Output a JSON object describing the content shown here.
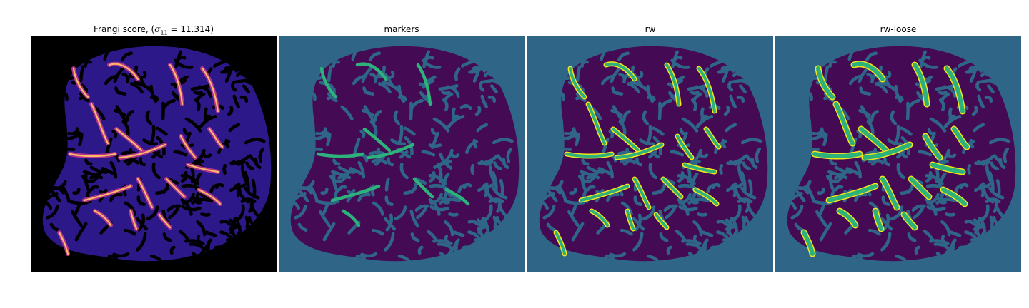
{
  "figure": {
    "panels": [
      {
        "title": "",
        "title_prefix": "Frangi score, (",
        "title_symbol": "σ",
        "title_sub": "11",
        "title_suffix": " = 11.314)",
        "colormap": "magma"
      },
      {
        "title": "markers",
        "colormap": "viridis"
      },
      {
        "title": "rw",
        "colormap": "viridis"
      },
      {
        "title": "rw-loose",
        "colormap": "viridis"
      }
    ],
    "colors": {
      "frangi_background": "#000000",
      "frangi_tissue": "#2d1889",
      "frangi_vessel": "#c1388d",
      "frangi_highlight": "#fbb96a",
      "seg_background": "#2f6687",
      "seg_tissue": "#450a54",
      "seg_vessel_core": "#2eb27c",
      "seg_vessel_edge": "#f3e71a"
    }
  }
}
